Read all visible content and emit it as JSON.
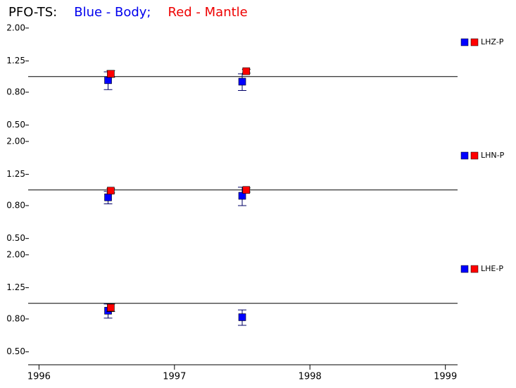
{
  "header": {
    "title": [
      {
        "text": "PFO-TS:",
        "color": "#000000"
      },
      {
        "text": "Blue - Body;",
        "color": "#0000ee"
      },
      {
        "text": "Red - Mantle",
        "color": "#ee0000"
      }
    ]
  },
  "chart_data": [
    {
      "type": "scatter",
      "label": "LHZ-P",
      "log_scale": true,
      "hline": 1,
      "xlim": [
        1995.92,
        1999.09
      ],
      "ylim": [
        0.42,
        2.1
      ],
      "yticks": [
        {
          "value": 0.5,
          "label": "0.50"
        },
        {
          "value": 0.8,
          "label": "0.80"
        },
        {
          "value": 1.25,
          "label": "1.25"
        },
        {
          "value": 2,
          "label": "2.00"
        }
      ],
      "series": [
        {
          "color": "#0000ff",
          "x": [
            1996.51,
            1997.5
          ],
          "values": [
            0.95,
            0.93
          ],
          "errors": [
            0.12,
            0.11
          ]
        },
        {
          "color": "#ff0000",
          "x": [
            1996.53,
            1997.53
          ],
          "values": [
            1.04,
            1.08
          ],
          "errors": [
            0.05,
            0.03
          ]
        }
      ]
    },
    {
      "type": "scatter",
      "label": "LHN-P",
      "log_scale": true,
      "hline": 1,
      "xlim": [
        1995.92,
        1999.09
      ],
      "ylim": [
        0.42,
        2.1
      ],
      "yticks": [
        {
          "value": 0.5,
          "label": "0.50"
        },
        {
          "value": 0.8,
          "label": "0.80"
        },
        {
          "value": 1.25,
          "label": "1.25"
        },
        {
          "value": 2,
          "label": "2.00"
        }
      ],
      "series": [
        {
          "color": "#0000ff",
          "x": [
            1996.51,
            1997.5
          ],
          "values": [
            0.9,
            0.92
          ],
          "errors": [
            0.08,
            0.12
          ]
        },
        {
          "color": "#ff0000",
          "x": [
            1996.53,
            1997.53
          ],
          "values": [
            0.99,
            1.0
          ],
          "errors": [
            0.03,
            0.03
          ]
        }
      ]
    },
    {
      "type": "scatter",
      "label": "LHE-P",
      "log_scale": true,
      "hline": 1,
      "xlim": [
        1995.92,
        1999.09
      ],
      "ylim": [
        0.42,
        2.1
      ],
      "yticks": [
        {
          "value": 0.5,
          "label": "0.50"
        },
        {
          "value": 0.8,
          "label": "0.80"
        },
        {
          "value": 1.25,
          "label": "1.25"
        },
        {
          "value": 2,
          "label": "2.00"
        }
      ],
      "xticks": [
        1996,
        1997,
        1998,
        1999
      ],
      "series": [
        {
          "color": "#0000ff",
          "x": [
            1996.51,
            1997.5
          ],
          "values": [
            0.9,
            0.82
          ],
          "errors": [
            0.09,
            0.09
          ]
        },
        {
          "color": "#ff0000",
          "x": [
            1996.53,
            null
          ],
          "values": [
            0.94,
            null
          ],
          "errors": [
            0.05,
            null
          ]
        }
      ]
    }
  ]
}
